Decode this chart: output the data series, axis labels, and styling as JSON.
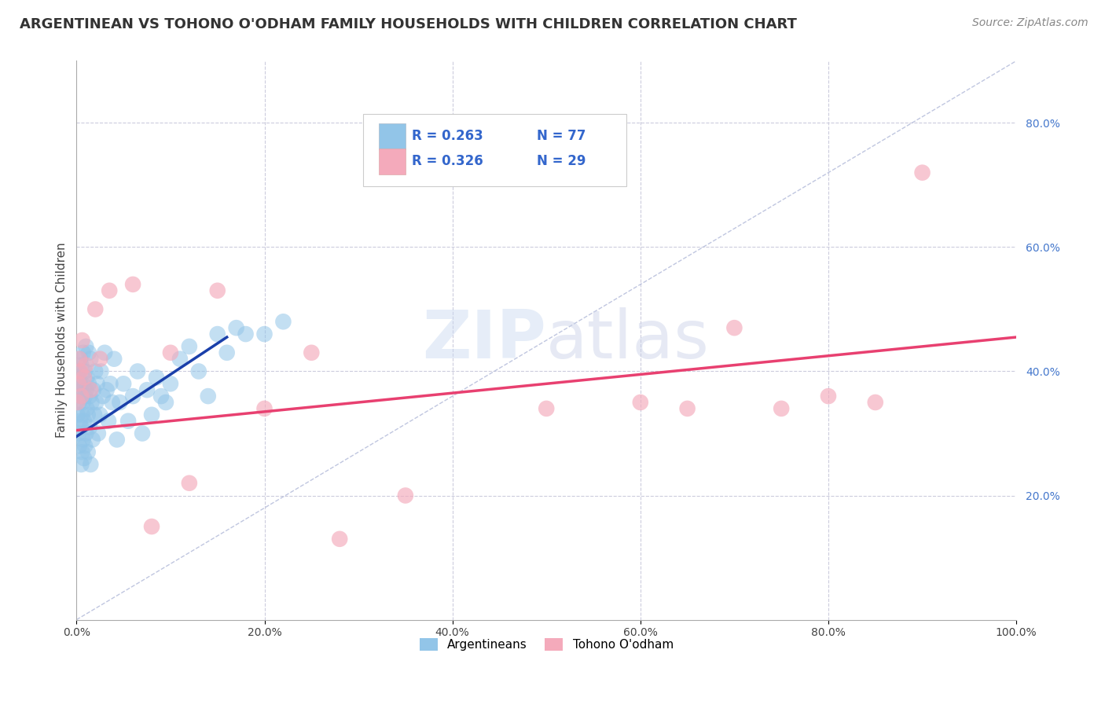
{
  "title": "ARGENTINEAN VS TOHONO O'ODHAM FAMILY HOUSEHOLDS WITH CHILDREN CORRELATION CHART",
  "source": "Source: ZipAtlas.com",
  "ylabel": "Family Households with Children",
  "xlim": [
    0.0,
    1.0
  ],
  "ylim": [
    0.0,
    0.9
  ],
  "xtick_positions": [
    0.0,
    0.2,
    0.4,
    0.6,
    0.8,
    1.0
  ],
  "xtick_labels": [
    "0.0%",
    "20.0%",
    "40.0%",
    "60.0%",
    "80.0%",
    "100.0%"
  ],
  "ytick_positions": [
    0.0,
    0.2,
    0.4,
    0.6,
    0.8
  ],
  "ytick_labels": [
    "",
    "20.0%",
    "40.0%",
    "60.0%",
    "80.0%"
  ],
  "legend_r1": "R = 0.263",
  "legend_n1": "N = 77",
  "legend_r2": "R = 0.326",
  "legend_n2": "N = 29",
  "blue_color": "#92C5E8",
  "pink_color": "#F4AABB",
  "line_blue": "#1A3FAA",
  "line_pink": "#E84070",
  "diag_color": "#B0B8D8",
  "watermark": "ZIPatlas",
  "arg_x": [
    0.001,
    0.002,
    0.002,
    0.003,
    0.003,
    0.003,
    0.004,
    0.004,
    0.004,
    0.005,
    0.005,
    0.005,
    0.005,
    0.006,
    0.006,
    0.006,
    0.007,
    0.007,
    0.007,
    0.008,
    0.008,
    0.009,
    0.009,
    0.009,
    0.01,
    0.01,
    0.01,
    0.011,
    0.011,
    0.012,
    0.012,
    0.013,
    0.013,
    0.014,
    0.014,
    0.015,
    0.015,
    0.016,
    0.017,
    0.018,
    0.019,
    0.02,
    0.021,
    0.022,
    0.023,
    0.025,
    0.026,
    0.028,
    0.03,
    0.032,
    0.034,
    0.036,
    0.038,
    0.04,
    0.043,
    0.046,
    0.05,
    0.055,
    0.06,
    0.065,
    0.07,
    0.075,
    0.08,
    0.085,
    0.09,
    0.095,
    0.1,
    0.11,
    0.12,
    0.13,
    0.14,
    0.15,
    0.16,
    0.17,
    0.18,
    0.2,
    0.22
  ],
  "arg_y": [
    0.33,
    0.3,
    0.37,
    0.28,
    0.35,
    0.4,
    0.32,
    0.38,
    0.42,
    0.25,
    0.31,
    0.36,
    0.41,
    0.27,
    0.33,
    0.38,
    0.29,
    0.35,
    0.43,
    0.26,
    0.32,
    0.28,
    0.36,
    0.4,
    0.3,
    0.37,
    0.44,
    0.34,
    0.39,
    0.27,
    0.33,
    0.38,
    0.43,
    0.31,
    0.36,
    0.25,
    0.42,
    0.35,
    0.29,
    0.37,
    0.33,
    0.4,
    0.35,
    0.38,
    0.3,
    0.33,
    0.4,
    0.36,
    0.43,
    0.37,
    0.32,
    0.38,
    0.35,
    0.42,
    0.29,
    0.35,
    0.38,
    0.32,
    0.36,
    0.4,
    0.3,
    0.37,
    0.33,
    0.39,
    0.36,
    0.35,
    0.38,
    0.42,
    0.44,
    0.4,
    0.36,
    0.46,
    0.43,
    0.47,
    0.46,
    0.46,
    0.48
  ],
  "toh_x": [
    0.001,
    0.002,
    0.003,
    0.004,
    0.005,
    0.006,
    0.008,
    0.01,
    0.015,
    0.02,
    0.025,
    0.035,
    0.06,
    0.08,
    0.1,
    0.12,
    0.15,
    0.2,
    0.25,
    0.28,
    0.35,
    0.5,
    0.6,
    0.65,
    0.7,
    0.75,
    0.8,
    0.85,
    0.9
  ],
  "toh_y": [
    0.35,
    0.38,
    0.42,
    0.4,
    0.36,
    0.45,
    0.39,
    0.41,
    0.37,
    0.5,
    0.42,
    0.53,
    0.54,
    0.15,
    0.43,
    0.22,
    0.53,
    0.34,
    0.43,
    0.13,
    0.2,
    0.34,
    0.35,
    0.34,
    0.47,
    0.34,
    0.36,
    0.35,
    0.72
  ],
  "blue_line_x": [
    0.0,
    0.16
  ],
  "blue_line_y": [
    0.295,
    0.455
  ],
  "pink_line_x": [
    0.0,
    1.0
  ],
  "pink_line_y": [
    0.305,
    0.455
  ]
}
